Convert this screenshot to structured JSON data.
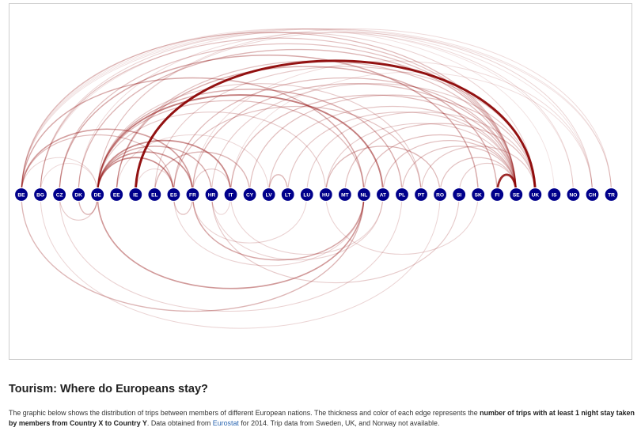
{
  "title": "Tourism: Where do Europeans stay?",
  "description": {
    "part1": "The graphic below shows the distribution of trips between members of different European nations. The thickness and color of each edge represents the ",
    "bold": "number of trips with at least 1 night stay taken by members from Country X to Country Y",
    "part2": ". Data obtained from ",
    "link": "Eurostat",
    "part3": " for 2014. Trip data from Sweden, UK, and Norway not available."
  },
  "colors": {
    "node_fill": "#00008b",
    "node_stroke": "#ffffff",
    "edge": "#8b0000",
    "link": "#2a66b1",
    "frame_border": "#cfcfcf"
  },
  "countries": [
    "BE",
    "BG",
    "CZ",
    "DK",
    "DE",
    "EE",
    "IE",
    "EL",
    "ES",
    "FR",
    "HR",
    "IT",
    "CY",
    "LV",
    "LT",
    "LU",
    "HU",
    "MT",
    "NL",
    "AT",
    "PL",
    "PT",
    "RO",
    "SI",
    "SK",
    "FI",
    "SE",
    "UK",
    "IS",
    "NO",
    "CH",
    "TR"
  ],
  "chart_data": {
    "type": "arc-diagram",
    "nodes": [
      "BE",
      "BG",
      "CZ",
      "DK",
      "DE",
      "EE",
      "IE",
      "EL",
      "ES",
      "FR",
      "HR",
      "IT",
      "CY",
      "LV",
      "LT",
      "LU",
      "HU",
      "MT",
      "NL",
      "AT",
      "PL",
      "PT",
      "RO",
      "SI",
      "SK",
      "FI",
      "SE",
      "UK",
      "IS",
      "NO",
      "CH",
      "TR"
    ],
    "edges": [
      {
        "source": "IE",
        "target": "UK",
        "strength": 1.0
      },
      {
        "source": "FI",
        "target": "SE",
        "strength": 0.9
      },
      {
        "source": "DE",
        "target": "AT",
        "strength": 0.5
      },
      {
        "source": "DE",
        "target": "ES",
        "strength": 0.45
      },
      {
        "source": "DE",
        "target": "IT",
        "strength": 0.45
      },
      {
        "source": "DE",
        "target": "FR",
        "strength": 0.4
      },
      {
        "source": "NL",
        "target": "DE",
        "strength": 0.38
      },
      {
        "source": "BE",
        "target": "FR",
        "strength": 0.35
      },
      {
        "source": "NL",
        "target": "FR",
        "strength": 0.32
      },
      {
        "source": "BE",
        "target": "NL",
        "strength": 0.3
      },
      {
        "source": "DE",
        "target": "HR",
        "strength": 0.3
      },
      {
        "source": "DE",
        "target": "PL",
        "strength": 0.28
      },
      {
        "source": "CZ",
        "target": "SK",
        "strength": 0.3
      },
      {
        "source": "DE",
        "target": "DK",
        "strength": 0.25
      },
      {
        "source": "EL",
        "target": "CY",
        "strength": 0.25
      },
      {
        "source": "LV",
        "target": "LT",
        "strength": 0.25
      },
      {
        "source": "EE",
        "target": "FI",
        "strength": 0.28
      },
      {
        "source": "HU",
        "target": "RO",
        "strength": 0.25
      },
      {
        "source": "BE",
        "target": "ES",
        "strength": 0.22
      },
      {
        "source": "DE",
        "target": "NL",
        "strength": 0.22
      },
      {
        "source": "BE",
        "target": "SE",
        "strength": 0.22
      },
      {
        "source": "BG",
        "target": "SE",
        "strength": 0.2
      },
      {
        "source": "CZ",
        "target": "SE",
        "strength": 0.2
      },
      {
        "source": "DK",
        "target": "SE",
        "strength": 0.25
      },
      {
        "source": "EE",
        "target": "SE",
        "strength": 0.2
      },
      {
        "source": "ES",
        "target": "SE",
        "strength": 0.22
      },
      {
        "source": "FR",
        "target": "SE",
        "strength": 0.22
      },
      {
        "source": "IT",
        "target": "SE",
        "strength": 0.22
      },
      {
        "source": "NL",
        "target": "SE",
        "strength": 0.22
      },
      {
        "source": "AT",
        "target": "SE",
        "strength": 0.2
      },
      {
        "source": "PL",
        "target": "SE",
        "strength": 0.2
      },
      {
        "source": "HR",
        "target": "UK",
        "strength": 0.15
      },
      {
        "source": "CY",
        "target": "UK",
        "strength": 0.2
      },
      {
        "source": "PT",
        "target": "UK",
        "strength": 0.18
      },
      {
        "source": "MT",
        "target": "UK",
        "strength": 0.2
      },
      {
        "source": "LU",
        "target": "UK",
        "strength": 0.15
      },
      {
        "source": "EL",
        "target": "UK",
        "strength": 0.15
      },
      {
        "source": "RO",
        "target": "SE",
        "strength": 0.2
      },
      {
        "source": "SI",
        "target": "SE",
        "strength": 0.15
      },
      {
        "source": "LV",
        "target": "SE",
        "strength": 0.18
      },
      {
        "source": "LT",
        "target": "SE",
        "strength": 0.18
      },
      {
        "source": "HU",
        "target": "SE",
        "strength": 0.15
      },
      {
        "source": "BE",
        "target": "TR",
        "strength": 0.06
      },
      {
        "source": "DE",
        "target": "TR",
        "strength": 0.08
      },
      {
        "source": "BG",
        "target": "TR",
        "strength": 0.06
      },
      {
        "source": "BE",
        "target": "CH",
        "strength": 0.05
      },
      {
        "source": "FR",
        "target": "CH",
        "strength": 0.08
      },
      {
        "source": "DE",
        "target": "CH",
        "strength": 0.1
      },
      {
        "source": "IT",
        "target": "CH",
        "strength": 0.07
      },
      {
        "source": "BE",
        "target": "NO",
        "strength": 0.05
      },
      {
        "source": "DK",
        "target": "NO",
        "strength": 0.08
      },
      {
        "source": "BE",
        "target": "IS",
        "strength": 0.05
      },
      {
        "source": "BG",
        "target": "UK",
        "strength": 0.12
      },
      {
        "source": "BE",
        "target": "DE",
        "strength": 0.1
      },
      {
        "source": "BG",
        "target": "DE",
        "strength": 0.08
      },
      {
        "source": "DE",
        "target": "PT",
        "strength": 0.15
      },
      {
        "source": "DE",
        "target": "HU",
        "strength": 0.15
      },
      {
        "source": "DE",
        "target": "CZ",
        "strength": 0.15
      },
      {
        "source": "EE",
        "target": "LV",
        "strength": 0.1
      },
      {
        "source": "ES",
        "target": "PT",
        "strength": 0.2
      },
      {
        "source": "FR",
        "target": "IT",
        "strength": 0.15
      },
      {
        "source": "FR",
        "target": "ES",
        "strength": 0.2
      },
      {
        "source": "IE",
        "target": "ES",
        "strength": 0.1
      },
      {
        "source": "IT",
        "target": "HR",
        "strength": 0.1
      },
      {
        "source": "LU",
        "target": "FR",
        "strength": 0.12
      },
      {
        "source": "AT",
        "target": "HR",
        "strength": 0.12
      },
      {
        "source": "AT",
        "target": "IT",
        "strength": 0.12
      },
      {
        "source": "SI",
        "target": "HR",
        "strength": 0.15
      },
      {
        "source": "SK",
        "target": "HU",
        "strength": 0.12
      },
      {
        "source": "PL",
        "target": "CZ",
        "strength": 0.12
      },
      {
        "source": "RO",
        "target": "BG",
        "strength": 0.1
      },
      {
        "source": "NL",
        "target": "ES",
        "strength": 0.12
      },
      {
        "source": "NL",
        "target": "BE",
        "strength": 0.25
      }
    ]
  }
}
